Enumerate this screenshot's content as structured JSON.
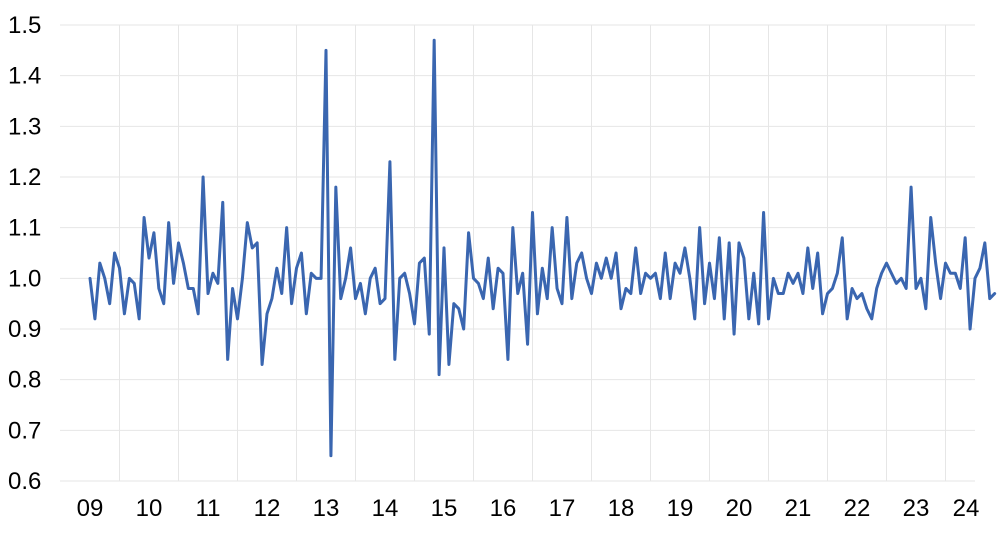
{
  "chart_data": {
    "type": "line",
    "title": "",
    "xlabel": "",
    "ylabel": "",
    "ylim": [
      0.6,
      1.5
    ],
    "yticks": [
      "0.6",
      "0.7",
      "0.8",
      "0.9",
      "1.0",
      "1.1",
      "1.2",
      "1.3",
      "1.4",
      "1.5"
    ],
    "xticks": [
      "09",
      "10",
      "11",
      "12",
      "13",
      "14",
      "15",
      "16",
      "17",
      "18",
      "19",
      "20",
      "21",
      "22",
      "23",
      "24"
    ],
    "grid": true,
    "legend": "none",
    "line_color": "#3a66b0",
    "grid_color": "#e6e6e6",
    "series": [
      {
        "start": "2008-07",
        "frequency": "monthly",
        "values": [
          1.0,
          0.92,
          1.03,
          1.0,
          0.95,
          1.05,
          1.02,
          0.93,
          1.0,
          0.99,
          0.92,
          1.12,
          1.04,
          1.09,
          0.98,
          0.95,
          1.11,
          0.99,
          1.07,
          1.03,
          0.98,
          0.98,
          0.93,
          1.2,
          0.97,
          1.01,
          0.99,
          1.15,
          0.84,
          0.98,
          0.92,
          1.0,
          1.11,
          1.06,
          1.07,
          0.83,
          0.93,
          0.96,
          1.02,
          0.97,
          1.1,
          0.95,
          1.02,
          1.05,
          0.93,
          1.01,
          1.0,
          1.0,
          1.45,
          0.65,
          1.18,
          0.96,
          1.0,
          1.06,
          0.96,
          0.99,
          0.93,
          1.0,
          1.02,
          0.95,
          0.96,
          1.23,
          0.84,
          1.0,
          1.01,
          0.97,
          0.91,
          1.03,
          1.04,
          0.89,
          1.47,
          0.81,
          1.06,
          0.83,
          0.95,
          0.94,
          0.9,
          1.09,
          1.0,
          0.99,
          0.96,
          1.04,
          0.94,
          1.02,
          1.01,
          0.84,
          1.1,
          0.97,
          1.01,
          0.87,
          1.13,
          0.93,
          1.02,
          0.96,
          1.1,
          0.98,
          0.95,
          1.12,
          0.96,
          1.03,
          1.05,
          1.0,
          0.97,
          1.03,
          1.0,
          1.04,
          1.0,
          1.05,
          0.94,
          0.98,
          0.97,
          1.06,
          0.97,
          1.01,
          1.0,
          1.01,
          0.96,
          1.05,
          0.96,
          1.03,
          1.01,
          1.06,
          1.0,
          0.92,
          1.1,
          0.95,
          1.03,
          0.96,
          1.08,
          0.92,
          1.07,
          0.89,
          1.07,
          1.04,
          0.92,
          1.01,
          0.91,
          1.13,
          0.92,
          1.0,
          0.97,
          0.97,
          1.01,
          0.99,
          1.01,
          0.97,
          1.06,
          0.98,
          1.05,
          0.93,
          0.97,
          0.98,
          1.01,
          1.08,
          0.92,
          0.98,
          0.96,
          0.97,
          0.94,
          0.92,
          0.98,
          1.01,
          1.03,
          1.01,
          0.99,
          1.0,
          0.98,
          1.18,
          0.98,
          1.0,
          0.94,
          1.12,
          1.03,
          0.96,
          1.03,
          1.01,
          1.01,
          0.98,
          1.08,
          0.9,
          1.0,
          1.02,
          1.07,
          0.96,
          0.97
        ]
      }
    ]
  }
}
